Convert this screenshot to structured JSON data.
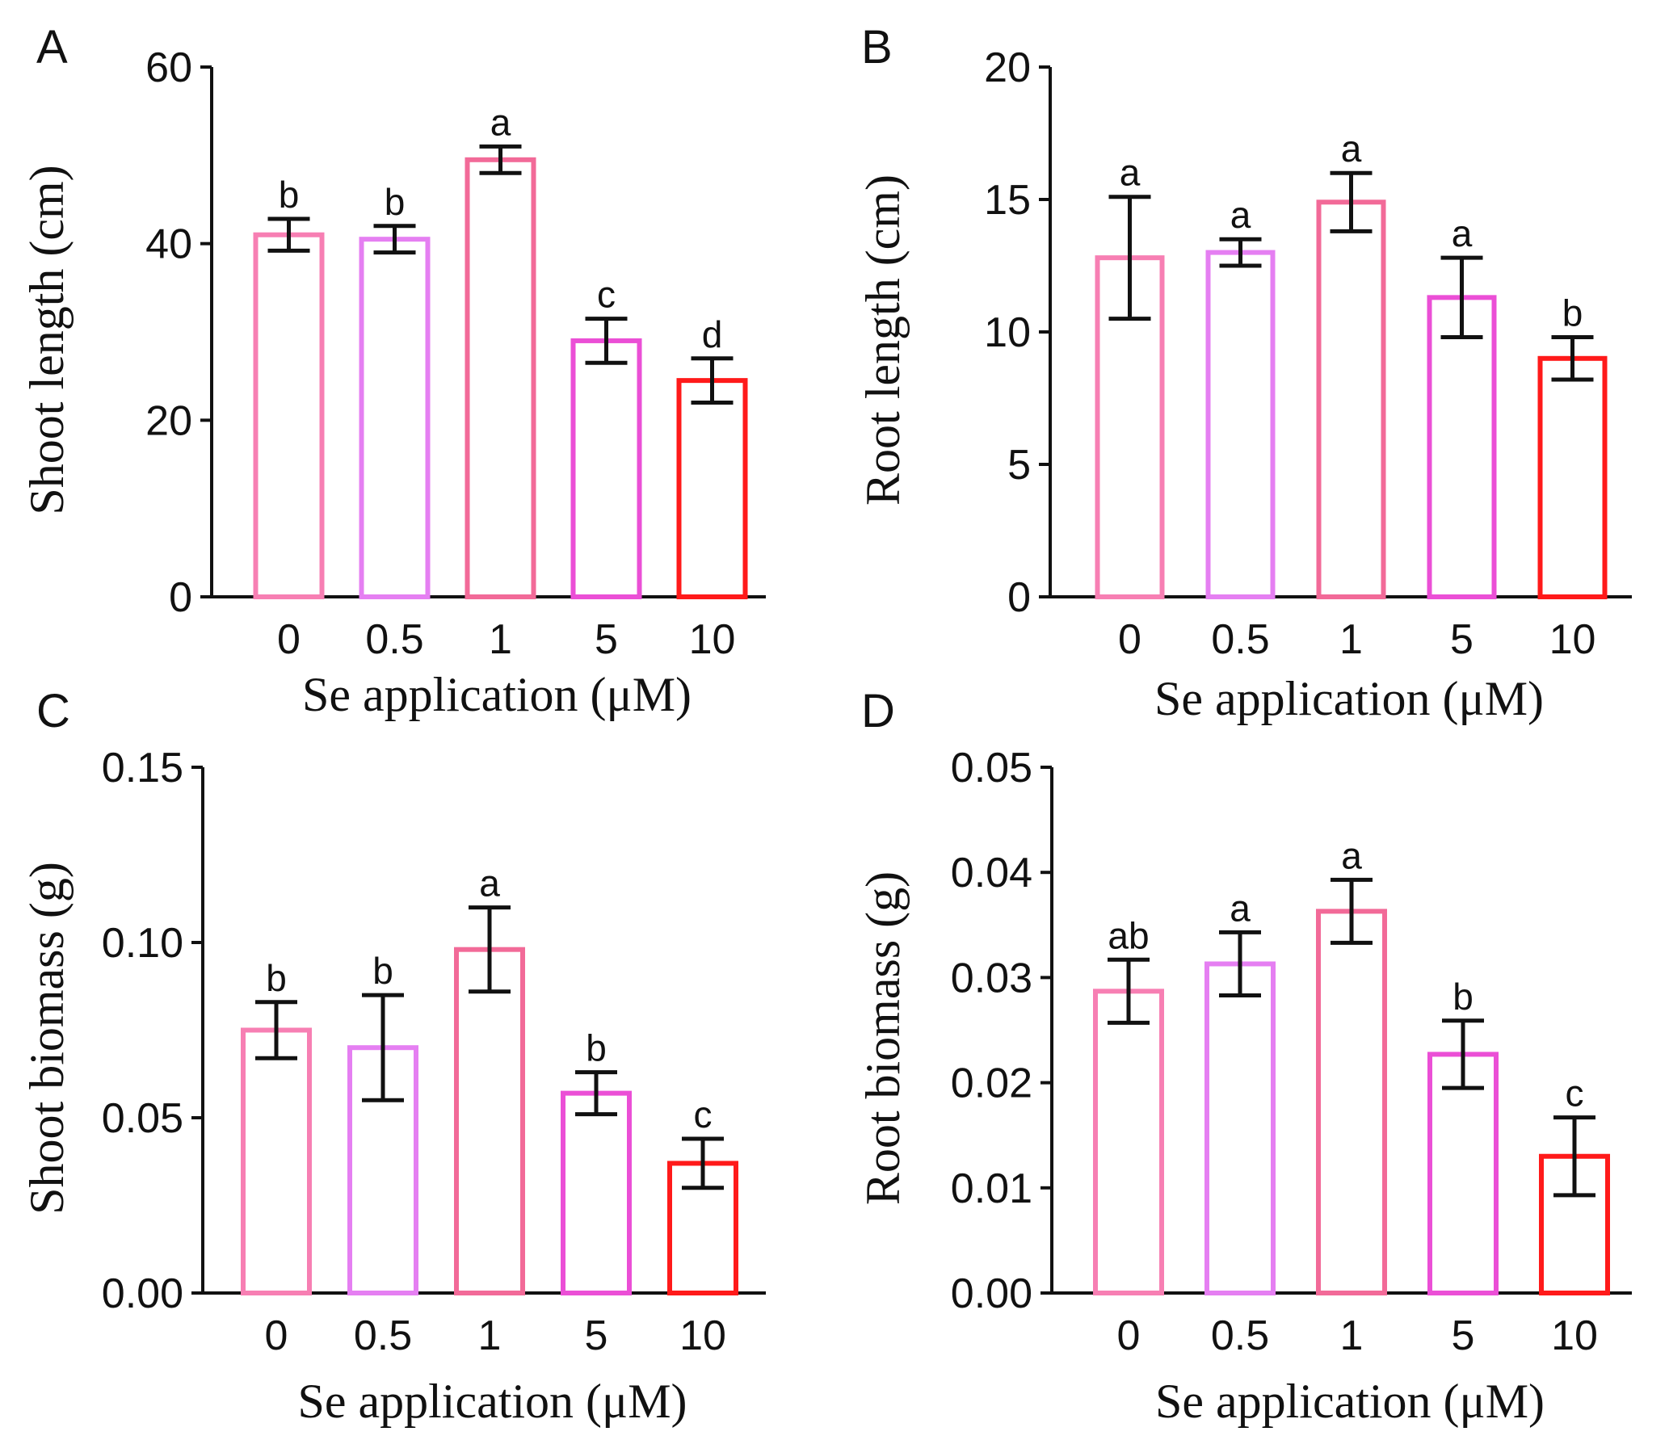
{
  "chart_data": [
    {
      "type": "bar",
      "panel": "A",
      "categories": [
        "0",
        "0.5",
        "1",
        "5",
        "10"
      ],
      "values": [
        41,
        40.5,
        49.5,
        29,
        24.5
      ],
      "errors": [
        1.8,
        1.5,
        1.5,
        2.5,
        2.5
      ],
      "significance": [
        "b",
        "b",
        "a",
        "c",
        "d"
      ],
      "xlabel": "Se application (μM)",
      "ylabel": "Shoot length (cm)",
      "ylim": [
        0,
        60
      ],
      "yticks": [
        "0",
        "20",
        "40",
        "60"
      ],
      "bar_colors": [
        "#f77fb3",
        "#e57ff2",
        "#f26a98",
        "#eb4fd6",
        "#ff1a1a"
      ]
    },
    {
      "type": "bar",
      "panel": "B",
      "categories": [
        "0",
        "0.5",
        "1",
        "5",
        "10"
      ],
      "values": [
        12.8,
        13,
        14.9,
        11.3,
        9
      ],
      "errors": [
        2.3,
        0.5,
        1.1,
        1.5,
        0.8
      ],
      "significance": [
        "a",
        "a",
        "a",
        "a",
        "b"
      ],
      "xlabel": "Se application (μM)",
      "ylabel": "Root length (cm)",
      "ylim": [
        0,
        20
      ],
      "yticks": [
        "0",
        "5",
        "10",
        "15",
        "20"
      ],
      "bar_colors": [
        "#f77fb3",
        "#e57ff2",
        "#f26a98",
        "#eb4fd6",
        "#ff1a1a"
      ]
    },
    {
      "type": "bar",
      "panel": "C",
      "categories": [
        "0",
        "0.5",
        "1",
        "5",
        "10"
      ],
      "values": [
        0.075,
        0.07,
        0.098,
        0.057,
        0.037
      ],
      "errors": [
        0.008,
        0.015,
        0.012,
        0.006,
        0.007
      ],
      "significance": [
        "b",
        "b",
        "a",
        "b",
        "c"
      ],
      "xlabel": "Se application (μM)",
      "ylabel": "Shoot biomass (g)",
      "ylim": [
        0,
        0.15
      ],
      "yticks": [
        "0.00",
        "0.05",
        "0.10",
        "0.15"
      ],
      "bar_colors": [
        "#f77fb3",
        "#e57ff2",
        "#f26a98",
        "#eb4fd6",
        "#ff1a1a"
      ]
    },
    {
      "type": "bar",
      "panel": "D",
      "categories": [
        "0",
        "0.5",
        "1",
        "5",
        "10"
      ],
      "values": [
        0.0287,
        0.0313,
        0.0363,
        0.0227,
        0.013
      ],
      "errors": [
        0.003,
        0.003,
        0.003,
        0.0032,
        0.0037
      ],
      "significance": [
        "ab",
        "a",
        "a",
        "b",
        "c"
      ],
      "xlabel": "Se application (μM)",
      "ylabel": "Root biomass (g)",
      "ylim": [
        0,
        0.05
      ],
      "yticks": [
        "0.00",
        "0.01",
        "0.02",
        "0.03",
        "0.04",
        "0.05"
      ],
      "bar_colors": [
        "#f77fb3",
        "#e57ff2",
        "#f26a98",
        "#eb4fd6",
        "#ff1a1a"
      ]
    }
  ]
}
